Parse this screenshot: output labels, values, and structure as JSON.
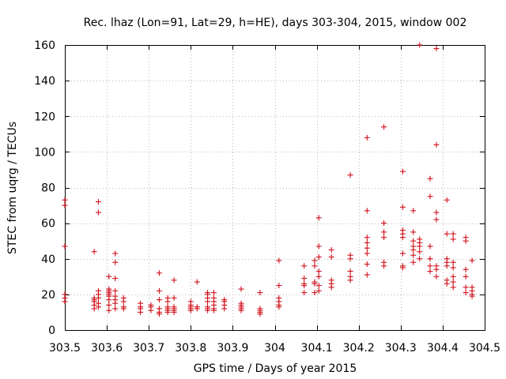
{
  "chart_data": {
    "type": "scatter",
    "title": "Rec. lhaz (Lon=91, Lat=29, h=HE), days 303-304, 2015, window 002",
    "xlabel": "GPS time / Days of year 2015",
    "ylabel": "STEC from uqrg / TECUs",
    "xlim": [
      303.5,
      304.5
    ],
    "ylim": [
      0,
      160
    ],
    "xticks": [
      303.5,
      303.6,
      303.7,
      303.8,
      303.9,
      304.0,
      304.1,
      304.2,
      304.3,
      304.4,
      304.5
    ],
    "xtick_labels": [
      "303.5",
      "303.6",
      "303.7",
      "303.8",
      "303.9",
      "304",
      "304.1",
      "304.2",
      "304.3",
      "304.4",
      "304.5"
    ],
    "yticks": [
      0,
      20,
      40,
      60,
      80,
      100,
      120,
      140,
      160
    ],
    "ytick_labels": [
      "0",
      "20",
      "40",
      "60",
      "80",
      "100",
      "120",
      "140",
      "160"
    ],
    "grid": true,
    "marker": "+",
    "marker_color": "#d0101a",
    "series": [
      {
        "name": "STEC",
        "points": [
          [
            303.5,
            73
          ],
          [
            303.5,
            70
          ],
          [
            303.5,
            47
          ],
          [
            303.5,
            20
          ],
          [
            303.5,
            18
          ],
          [
            303.5,
            16
          ],
          [
            303.57,
            44
          ],
          [
            303.57,
            18
          ],
          [
            303.57,
            17
          ],
          [
            303.57,
            16
          ],
          [
            303.57,
            14
          ],
          [
            303.57,
            12
          ],
          [
            303.58,
            72
          ],
          [
            303.58,
            66
          ],
          [
            303.58,
            22
          ],
          [
            303.58,
            20
          ],
          [
            303.58,
            18
          ],
          [
            303.58,
            15
          ],
          [
            303.58,
            13
          ],
          [
            303.605,
            30
          ],
          [
            303.605,
            23
          ],
          [
            303.605,
            22
          ],
          [
            303.605,
            21
          ],
          [
            303.605,
            20
          ],
          [
            303.605,
            19
          ],
          [
            303.605,
            17
          ],
          [
            303.605,
            14
          ],
          [
            303.605,
            11
          ],
          [
            303.62,
            43
          ],
          [
            303.62,
            38
          ],
          [
            303.62,
            29
          ],
          [
            303.62,
            22
          ],
          [
            303.62,
            19
          ],
          [
            303.62,
            17
          ],
          [
            303.62,
            15
          ],
          [
            303.62,
            12
          ],
          [
            303.64,
            18
          ],
          [
            303.64,
            16
          ],
          [
            303.64,
            13
          ],
          [
            303.64,
            12
          ],
          [
            303.68,
            15
          ],
          [
            303.68,
            13
          ],
          [
            303.68,
            12
          ],
          [
            303.68,
            10
          ],
          [
            303.705,
            14
          ],
          [
            303.705,
            13
          ],
          [
            303.705,
            11
          ],
          [
            303.725,
            32
          ],
          [
            303.725,
            22
          ],
          [
            303.725,
            17
          ],
          [
            303.725,
            12
          ],
          [
            303.725,
            10
          ],
          [
            303.725,
            9
          ],
          [
            303.745,
            18
          ],
          [
            303.745,
            16
          ],
          [
            303.745,
            13
          ],
          [
            303.745,
            12
          ],
          [
            303.745,
            11
          ],
          [
            303.745,
            10
          ],
          [
            303.76,
            28
          ],
          [
            303.76,
            18
          ],
          [
            303.76,
            13
          ],
          [
            303.76,
            12
          ],
          [
            303.76,
            11
          ],
          [
            303.76,
            10
          ],
          [
            303.8,
            16
          ],
          [
            303.8,
            14
          ],
          [
            303.8,
            13
          ],
          [
            303.8,
            12
          ],
          [
            303.8,
            11
          ],
          [
            303.815,
            27
          ],
          [
            303.815,
            13
          ],
          [
            303.815,
            12
          ],
          [
            303.84,
            21
          ],
          [
            303.84,
            20
          ],
          [
            303.84,
            18
          ],
          [
            303.84,
            16
          ],
          [
            303.84,
            13
          ],
          [
            303.84,
            12
          ],
          [
            303.84,
            11
          ],
          [
            303.855,
            21
          ],
          [
            303.855,
            18
          ],
          [
            303.855,
            16
          ],
          [
            303.855,
            14
          ],
          [
            303.855,
            12
          ],
          [
            303.855,
            11
          ],
          [
            303.88,
            17
          ],
          [
            303.88,
            16
          ],
          [
            303.88,
            14
          ],
          [
            303.88,
            12
          ],
          [
            303.92,
            23
          ],
          [
            303.92,
            15
          ],
          [
            303.92,
            14
          ],
          [
            303.92,
            13
          ],
          [
            303.92,
            12
          ],
          [
            303.92,
            11
          ],
          [
            303.965,
            21
          ],
          [
            303.965,
            12
          ],
          [
            303.965,
            11
          ],
          [
            303.965,
            10
          ],
          [
            303.965,
            9
          ],
          [
            304.01,
            39
          ],
          [
            304.01,
            25
          ],
          [
            304.01,
            18
          ],
          [
            304.01,
            16
          ],
          [
            304.01,
            14
          ],
          [
            304.01,
            13
          ],
          [
            304.07,
            36
          ],
          [
            304.07,
            29
          ],
          [
            304.07,
            26
          ],
          [
            304.07,
            25
          ],
          [
            304.07,
            21
          ],
          [
            304.095,
            39
          ],
          [
            304.095,
            36
          ],
          [
            304.095,
            27
          ],
          [
            304.095,
            26
          ],
          [
            304.095,
            21
          ],
          [
            304.105,
            63
          ],
          [
            304.105,
            47
          ],
          [
            304.105,
            41
          ],
          [
            304.105,
            33
          ],
          [
            304.105,
            30
          ],
          [
            304.105,
            25
          ],
          [
            304.105,
            22
          ],
          [
            304.135,
            45
          ],
          [
            304.135,
            41
          ],
          [
            304.135,
            28
          ],
          [
            304.135,
            26
          ],
          [
            304.135,
            24
          ],
          [
            304.18,
            87
          ],
          [
            304.18,
            42
          ],
          [
            304.18,
            40
          ],
          [
            304.18,
            33
          ],
          [
            304.18,
            30
          ],
          [
            304.18,
            28
          ],
          [
            304.22,
            108
          ],
          [
            304.22,
            67
          ],
          [
            304.22,
            52
          ],
          [
            304.22,
            49
          ],
          [
            304.22,
            46
          ],
          [
            304.22,
            43
          ],
          [
            304.22,
            37
          ],
          [
            304.22,
            31
          ],
          [
            304.26,
            114
          ],
          [
            304.26,
            60
          ],
          [
            304.26,
            55
          ],
          [
            304.26,
            52
          ],
          [
            304.26,
            38
          ],
          [
            304.26,
            36
          ],
          [
            304.305,
            89
          ],
          [
            304.305,
            69
          ],
          [
            304.305,
            56
          ],
          [
            304.305,
            54
          ],
          [
            304.305,
            52
          ],
          [
            304.305,
            43
          ],
          [
            304.305,
            36
          ],
          [
            304.305,
            35
          ],
          [
            304.33,
            67
          ],
          [
            304.33,
            55
          ],
          [
            304.33,
            50
          ],
          [
            304.33,
            47
          ],
          [
            304.33,
            45
          ],
          [
            304.33,
            42
          ],
          [
            304.33,
            38
          ],
          [
            304.345,
            160
          ],
          [
            304.345,
            51
          ],
          [
            304.345,
            49
          ],
          [
            304.345,
            47
          ],
          [
            304.345,
            44
          ],
          [
            304.345,
            40
          ],
          [
            304.37,
            85
          ],
          [
            304.37,
            75
          ],
          [
            304.37,
            47
          ],
          [
            304.37,
            40
          ],
          [
            304.37,
            36
          ],
          [
            304.37,
            33
          ],
          [
            304.385,
            158
          ],
          [
            304.385,
            104
          ],
          [
            304.385,
            66
          ],
          [
            304.385,
            62
          ],
          [
            304.385,
            36
          ],
          [
            304.385,
            34
          ],
          [
            304.385,
            30
          ],
          [
            304.41,
            73
          ],
          [
            304.41,
            54
          ],
          [
            304.41,
            40
          ],
          [
            304.41,
            38
          ],
          [
            304.41,
            36
          ],
          [
            304.41,
            28
          ],
          [
            304.41,
            26
          ],
          [
            304.425,
            54
          ],
          [
            304.425,
            51
          ],
          [
            304.425,
            38
          ],
          [
            304.425,
            35
          ],
          [
            304.425,
            30
          ],
          [
            304.425,
            27
          ],
          [
            304.425,
            24
          ],
          [
            304.455,
            52
          ],
          [
            304.455,
            50
          ],
          [
            304.455,
            34
          ],
          [
            304.455,
            30
          ],
          [
            304.455,
            24
          ],
          [
            304.455,
            21
          ],
          [
            304.47,
            39
          ],
          [
            304.47,
            24
          ],
          [
            304.47,
            22
          ],
          [
            304.47,
            20
          ],
          [
            304.47,
            19
          ]
        ]
      }
    ]
  }
}
